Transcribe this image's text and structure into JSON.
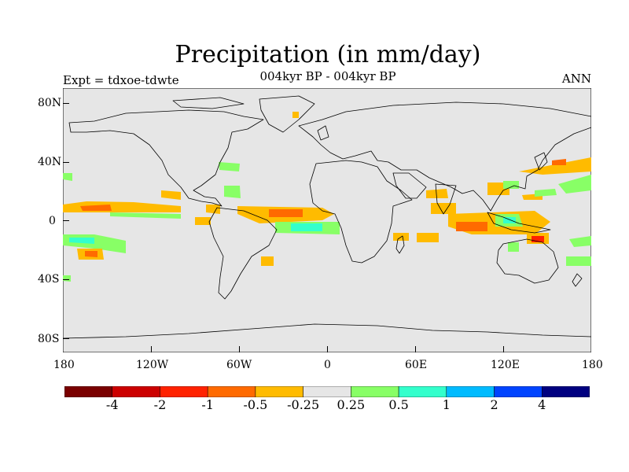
{
  "title": "Precipitation (in mm/day)",
  "subtitle": "004kyr BP - 004kyr BP",
  "left_label": "Expt = tdxoe-tdwte",
  "right_label": "ANN",
  "axes": {
    "lat_ticks": [
      "80N",
      "40N",
      "0",
      "40S",
      "80S"
    ],
    "lon_ticks": [
      "180",
      "120W",
      "60W",
      "0",
      "60E",
      "120E",
      "180"
    ]
  },
  "colorbar": {
    "colors": [
      "#7a0000",
      "#cc0000",
      "#ff2200",
      "#ff6a00",
      "#ffbb00",
      "#e6e6e6",
      "#88ff66",
      "#33ffcc",
      "#00bbff",
      "#0044ff",
      "#000080"
    ],
    "labels": [
      "-4",
      "-2",
      "-1",
      "-0.5",
      "-0.25",
      "0.25",
      "0.5",
      "1",
      "2",
      "4"
    ]
  },
  "colors": {
    "background": "#e6e6e6",
    "coastline": "#000000",
    "dry_strong": "#ff6a00",
    "dry": "#ffbb00",
    "dry_extreme": "#ff2200",
    "wet": "#88ff66",
    "wet_strong": "#33ffcc",
    "wet_extreme": "#00bbff"
  }
}
